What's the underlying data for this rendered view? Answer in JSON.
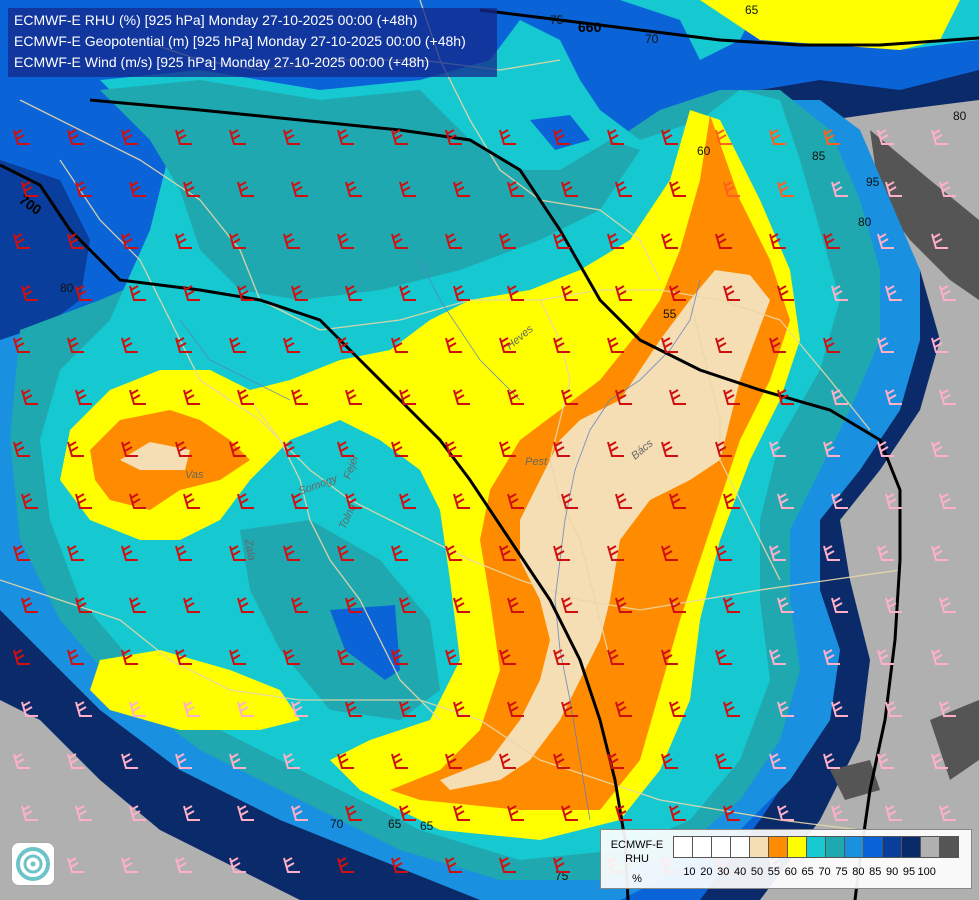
{
  "header": {
    "line1": "ECMWF-E RHU (%) [925 hPa] Monday 27-10-2025 00:00 (+48h)",
    "line2": "ECMWF-E Geopotential (m) [925 hPa] Monday 27-10-2025 00:00 (+48h)",
    "line3": "ECMWF-E Wind (m/s) [925 hPa] Monday 27-10-2025 00:00 (+48h)"
  },
  "legend": {
    "title_line1": "ECMWF-E",
    "title_line2": "RHU",
    "unit": "%",
    "ticks": [
      "10",
      "20",
      "30",
      "40",
      "50",
      "55",
      "60",
      "65",
      "70",
      "75",
      "80",
      "85",
      "90",
      "95",
      "100"
    ],
    "colors": [
      "#ffffff",
      "#ffffff",
      "#ffffff",
      "#ffffff",
      "#f5deb3",
      "#ff8c00",
      "#ffff00",
      "#16c8d0",
      "#20a8b0",
      "#1a90e0",
      "#0a64d8",
      "#0a3e9c",
      "#0a2a6a",
      "#b0b0b0",
      "#555555"
    ]
  },
  "contours": {
    "geopotential_labels": [
      "660",
      "700"
    ],
    "rhu_labels": [
      "75",
      "70",
      "65",
      "60",
      "55",
      "80",
      "85",
      "95",
      "80",
      "65",
      "70",
      "75",
      "80",
      "65"
    ]
  },
  "places": [
    "Heves",
    "Pest",
    "Bács",
    "Vas",
    "Somogy",
    "Fejér",
    "Tolna",
    "Zala"
  ]
}
